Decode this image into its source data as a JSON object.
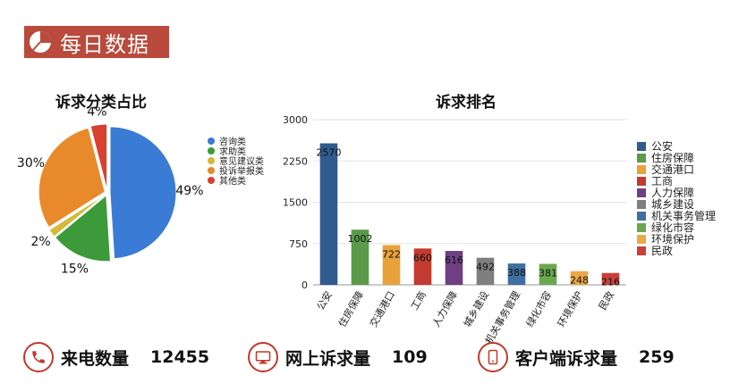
{
  "header": {
    "title": "每日数据"
  },
  "chart_data": [
    {
      "type": "pie",
      "title": "诉求分类占比",
      "legend_position": "right",
      "slices": [
        {
          "label": "咨询类",
          "percent": 49,
          "value_label": "49%",
          "color": "#3a7bd5"
        },
        {
          "label": "求助类",
          "percent": 15,
          "value_label": "15%",
          "color": "#3c9a3a"
        },
        {
          "label": "意见建议类",
          "percent": 2,
          "value_label": "2%",
          "color": "#d4b93a"
        },
        {
          "label": "投诉举报类",
          "percent": 30,
          "value_label": "30%",
          "color": "#e88a2c"
        },
        {
          "label": "其他类",
          "percent": 4,
          "value_label": "4%",
          "color": "#d8402f"
        }
      ]
    },
    {
      "type": "bar",
      "title": "诉求排名",
      "categories": [
        "公安",
        "住房保障",
        "交通港口",
        "工商",
        "人力保障",
        "城乡建设",
        "机关事务管理",
        "绿化市容",
        "环境保护",
        "民政"
      ],
      "values": [
        2570,
        1002,
        722,
        660,
        616,
        492,
        388,
        381,
        248,
        216
      ],
      "colors": [
        "#2f5b8e",
        "#5a9a48",
        "#e9a23b",
        "#c23a30",
        "#6e3f83",
        "#7f7f7f",
        "#3f6fa0",
        "#6aa84f",
        "#eba848",
        "#c9403a"
      ],
      "ylim": [
        0,
        3000
      ],
      "yticks": [
        "0",
        "750",
        "1500",
        "2250",
        "3000"
      ],
      "grid": true,
      "legend_position": "right"
    }
  ],
  "stats": [
    {
      "icon": "phone-icon",
      "label": "来电数量",
      "value": "12455"
    },
    {
      "icon": "computer-icon",
      "label": "网上诉求量",
      "value": "109"
    },
    {
      "icon": "mobile-icon",
      "label": "客户端诉求量",
      "value": "259"
    }
  ]
}
